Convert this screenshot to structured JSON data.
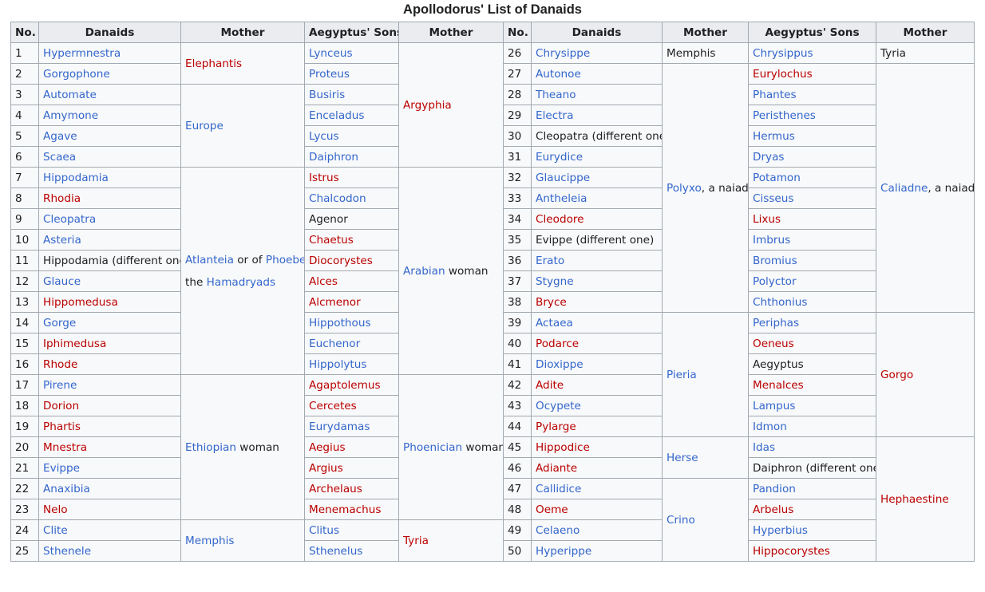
{
  "caption": "Apollodorus' List of Danaids",
  "headers": {
    "no": "No.",
    "danaids": "Danaids",
    "mother": "Mother",
    "sons": "Aegyptus' Sons"
  },
  "left_rows": [
    {
      "no": "1",
      "danaid": "Hypermnestra",
      "danaid_color": "blue",
      "son": "Lynceus",
      "son_color": "blue"
    },
    {
      "no": "2",
      "danaid": "Gorgophone",
      "danaid_color": "blue",
      "son": "Proteus",
      "son_color": "blue"
    },
    {
      "no": "3",
      "danaid": "Automate",
      "danaid_color": "blue",
      "son": "Busiris",
      "son_color": "blue"
    },
    {
      "no": "4",
      "danaid": "Amymone",
      "danaid_color": "blue",
      "son": "Enceladus",
      "son_color": "blue"
    },
    {
      "no": "5",
      "danaid": "Agave",
      "danaid_color": "blue",
      "son": "Lycus",
      "son_color": "blue"
    },
    {
      "no": "6",
      "danaid": "Scaea",
      "danaid_color": "blue",
      "son": "Daiphron",
      "son_color": "blue"
    },
    {
      "no": "7",
      "danaid": "Hippodamia",
      "danaid_color": "blue",
      "son": "Istrus",
      "son_color": "red"
    },
    {
      "no": "8",
      "danaid": "Rhodia",
      "danaid_color": "red",
      "son": "Chalcodon",
      "son_color": "blue"
    },
    {
      "no": "9",
      "danaid": "Cleopatra",
      "danaid_color": "blue",
      "son": "Agenor",
      "son_color": "txt"
    },
    {
      "no": "10",
      "danaid": "Asteria",
      "danaid_color": "blue",
      "son": "Chaetus",
      "son_color": "red"
    },
    {
      "no": "11",
      "danaid": "Hippodamia (different one)",
      "danaid_color": "txt",
      "son": "Diocorystes",
      "son_color": "red"
    },
    {
      "no": "12",
      "danaid": "Glauce",
      "danaid_color": "blue",
      "son": "Alces",
      "son_color": "red"
    },
    {
      "no": "13",
      "danaid": "Hippomedusa",
      "danaid_color": "red",
      "son": "Alcmenor",
      "son_color": "red"
    },
    {
      "no": "14",
      "danaid": "Gorge",
      "danaid_color": "blue",
      "son": "Hippothous",
      "son_color": "blue"
    },
    {
      "no": "15",
      "danaid": "Iphimedusa",
      "danaid_color": "red",
      "son": "Euchenor",
      "son_color": "blue"
    },
    {
      "no": "16",
      "danaid": "Rhode",
      "danaid_color": "red",
      "son": "Hippolytus",
      "son_color": "blue"
    },
    {
      "no": "17",
      "danaid": "Pirene",
      "danaid_color": "blue",
      "son": "Agaptolemus",
      "son_color": "red"
    },
    {
      "no": "18",
      "danaid": "Dorion",
      "danaid_color": "red",
      "son": "Cercetes",
      "son_color": "red"
    },
    {
      "no": "19",
      "danaid": "Phartis",
      "danaid_color": "red",
      "son": "Eurydamas",
      "son_color": "blue"
    },
    {
      "no": "20",
      "danaid": "Mnestra",
      "danaid_color": "red",
      "son": "Aegius",
      "son_color": "red"
    },
    {
      "no": "21",
      "danaid": "Evippe",
      "danaid_color": "blue",
      "son": "Argius",
      "son_color": "red"
    },
    {
      "no": "22",
      "danaid": "Anaxibia",
      "danaid_color": "blue",
      "son": "Archelaus",
      "son_color": "red"
    },
    {
      "no": "23",
      "danaid": "Nelo",
      "danaid_color": "red",
      "son": "Menemachus",
      "son_color": "red"
    },
    {
      "no": "24",
      "danaid": "Clite",
      "danaid_color": "blue",
      "son": "Clitus",
      "son_color": "blue"
    },
    {
      "no": "25",
      "danaid": "Sthenele",
      "danaid_color": "blue",
      "son": "Sthenelus",
      "son_color": "blue"
    }
  ],
  "right_rows": [
    {
      "no": "26",
      "danaid": "Chrysippe",
      "danaid_color": "blue",
      "son": "Chrysippus",
      "son_color": "blue"
    },
    {
      "no": "27",
      "danaid": "Autonoe",
      "danaid_color": "blue",
      "son": "Eurylochus",
      "son_color": "red"
    },
    {
      "no": "28",
      "danaid": "Theano",
      "danaid_color": "blue",
      "son": "Phantes",
      "son_color": "blue"
    },
    {
      "no": "29",
      "danaid": "Electra",
      "danaid_color": "blue",
      "son": "Peristhenes",
      "son_color": "blue"
    },
    {
      "no": "30",
      "danaid": "Cleopatra (different one)",
      "danaid_color": "txt",
      "son": "Hermus",
      "son_color": "blue"
    },
    {
      "no": "31",
      "danaid": "Eurydice",
      "danaid_color": "blue",
      "son": "Dryas",
      "son_color": "blue"
    },
    {
      "no": "32",
      "danaid": "Glaucippe",
      "danaid_color": "blue",
      "son": "Potamon",
      "son_color": "blue"
    },
    {
      "no": "33",
      "danaid": "Antheleia",
      "danaid_color": "blue",
      "son": "Cisseus",
      "son_color": "blue"
    },
    {
      "no": "34",
      "danaid": "Cleodore",
      "danaid_color": "red",
      "son": "Lixus",
      "son_color": "red"
    },
    {
      "no": "35",
      "danaid": "Evippe (different one)",
      "danaid_color": "txt",
      "son": "Imbrus",
      "son_color": "blue"
    },
    {
      "no": "36",
      "danaid": "Erato",
      "danaid_color": "blue",
      "son": "Bromius",
      "son_color": "blue"
    },
    {
      "no": "37",
      "danaid": "Stygne",
      "danaid_color": "blue",
      "son": "Polyctor",
      "son_color": "blue"
    },
    {
      "no": "38",
      "danaid": "Bryce",
      "danaid_color": "red",
      "son": "Chthonius",
      "son_color": "blue"
    },
    {
      "no": "39",
      "danaid": "Actaea",
      "danaid_color": "blue",
      "son": "Periphas",
      "son_color": "blue"
    },
    {
      "no": "40",
      "danaid": "Podarce",
      "danaid_color": "red",
      "son": "Oeneus",
      "son_color": "red"
    },
    {
      "no": "41",
      "danaid": "Dioxippe",
      "danaid_color": "blue",
      "son": "Aegyptus",
      "son_color": "txt"
    },
    {
      "no": "42",
      "danaid": "Adite",
      "danaid_color": "red",
      "son": "Menalces",
      "son_color": "red"
    },
    {
      "no": "43",
      "danaid": "Ocypete",
      "danaid_color": "blue",
      "son": "Lampus",
      "son_color": "blue"
    },
    {
      "no": "44",
      "danaid": "Pylarge",
      "danaid_color": "red",
      "son": "Idmon",
      "son_color": "blue"
    },
    {
      "no": "45",
      "danaid": "Hippodice",
      "danaid_color": "red",
      "son": "Idas",
      "son_color": "blue"
    },
    {
      "no": "46",
      "danaid": "Adiante",
      "danaid_color": "red",
      "son": "Daiphron (different one)",
      "son_color": "txt"
    },
    {
      "no": "47",
      "danaid": "Callidice",
      "danaid_color": "blue",
      "son": "Pandion",
      "son_color": "blue"
    },
    {
      "no": "48",
      "danaid": "Oeme",
      "danaid_color": "red",
      "son": "Arbelus",
      "son_color": "red"
    },
    {
      "no": "49",
      "danaid": "Celaeno",
      "danaid_color": "blue",
      "son": "Hyperbius",
      "son_color": "blue"
    },
    {
      "no": "50",
      "danaid": "Hyperippe",
      "danaid_color": "blue",
      "son": "Hippocorystes",
      "son_color": "red"
    }
  ],
  "mothers_left": {
    "elephantis": "Elephantis",
    "europe": "Europe",
    "atlanteia": "Atlanteia",
    "or_of": " or of ",
    "phoebe": "Phoebe",
    "comma": ",",
    "the": "the ",
    "hamadryads": "Hamadryads",
    "ethiopian": "Ethiopian",
    "woman": " woman",
    "memphis": "Memphis"
  },
  "mothers_sons_left": {
    "argyphia": "Argyphia",
    "arabian": "Arabian",
    "woman": " woman",
    "phoenician": "Phoenician",
    "tyria": "Tyria"
  },
  "mothers_right": {
    "memphis": "Memphis",
    "polyxo": "Polyxo",
    "a_naiad": ", a naiad",
    "pieria": "Pieria",
    "herse": "Herse",
    "crino": "Crino"
  },
  "mothers_sons_right": {
    "tyria": "Tyria",
    "caliadne": "Caliadne",
    "a_naiad": ", a naiad",
    "gorgo": "Gorgo",
    "hephaestine": "Hephaestine"
  },
  "colors": {
    "link_blue": "#3366cc",
    "missing_red": "#ba0000",
    "text": "#202122",
    "header_bg": "#eaecf0",
    "cell_bg": "#f8f9fa",
    "border": "#a2a9b1"
  }
}
